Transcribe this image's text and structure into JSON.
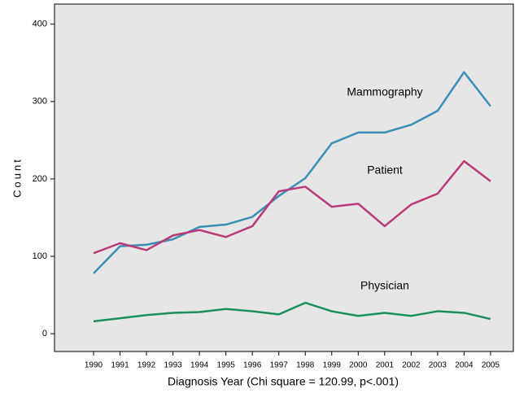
{
  "chart_data": {
    "type": "line",
    "x_label": "Diagnosis Year (Chi square = 120.99, p<.001)",
    "y_label": "Count",
    "categories": [
      "1990",
      "1991",
      "1992",
      "1993",
      "1994",
      "1995",
      "1996",
      "1997",
      "1998",
      "1999",
      "2000",
      "2001",
      "2002",
      "2003",
      "2004",
      "2005"
    ],
    "series": [
      {
        "name": "Mammography",
        "color": "#3a8fb5",
        "values": [
          78,
          113,
          115,
          122,
          138,
          141,
          151,
          178,
          201,
          246,
          260,
          260,
          270,
          288,
          338,
          294
        ]
      },
      {
        "name": "Patient",
        "color": "#b83a78",
        "values": [
          104,
          117,
          108,
          127,
          134,
          125,
          139,
          184,
          190,
          164,
          168,
          139,
          167,
          181,
          223,
          197
        ]
      },
      {
        "name": "Physician",
        "color": "#1a8f5a",
        "values": [
          16,
          20,
          24,
          27,
          28,
          32,
          29,
          25,
          40,
          29,
          23,
          27,
          23,
          29,
          27,
          19
        ]
      }
    ],
    "ylim": [
      -23,
      426
    ],
    "yticks": [
      0,
      100,
      200,
      300,
      400
    ],
    "grid": false
  }
}
